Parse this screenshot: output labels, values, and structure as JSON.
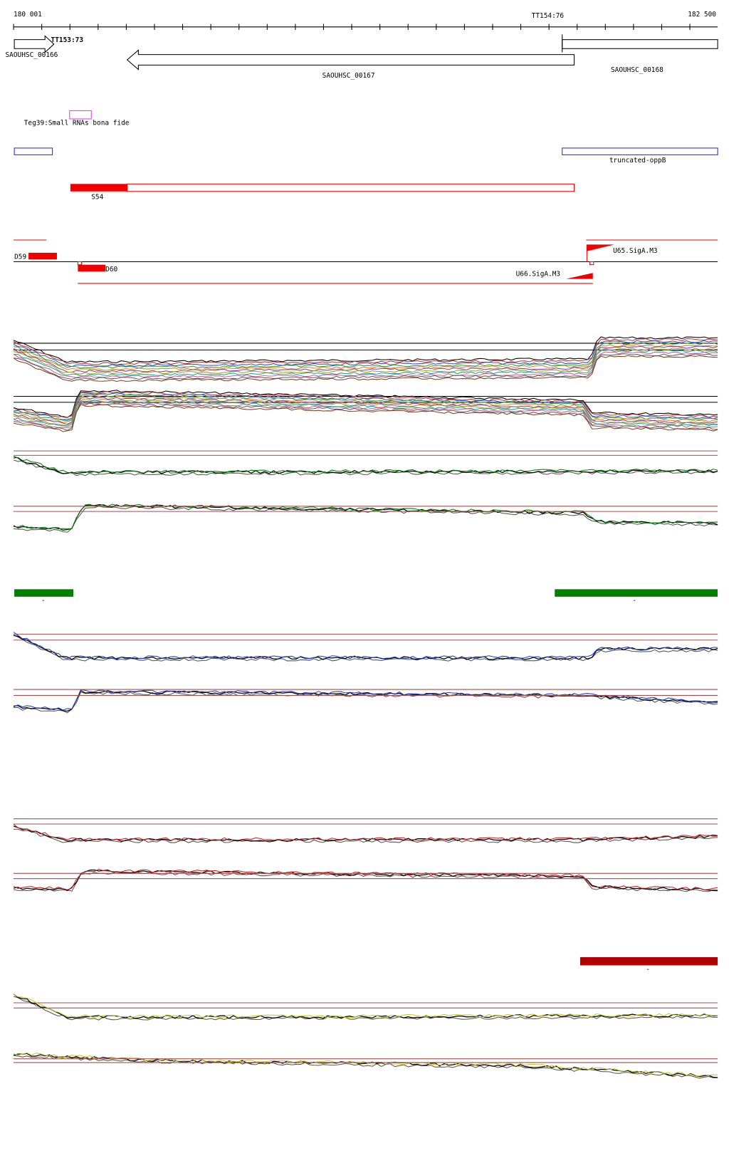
{
  "ruler": {
    "start": "180 001",
    "end": "182 500",
    "markers": [
      "TT154:76",
      "TT153:73"
    ]
  },
  "genes": [
    "SAOUHSC_00166",
    "SAOUHSC_00167",
    "SAOUHSC_00168"
  ],
  "small_rna": "Teg39:Small RNAs bona fide",
  "operon": "truncated-oppB",
  "segments": [
    "S54",
    "D59",
    "D60"
  ],
  "promoters": [
    "U65.SigA.M3",
    "U66.SigA.M3"
  ],
  "bar_labels": [
    "-",
    "-",
    "-"
  ]
}
